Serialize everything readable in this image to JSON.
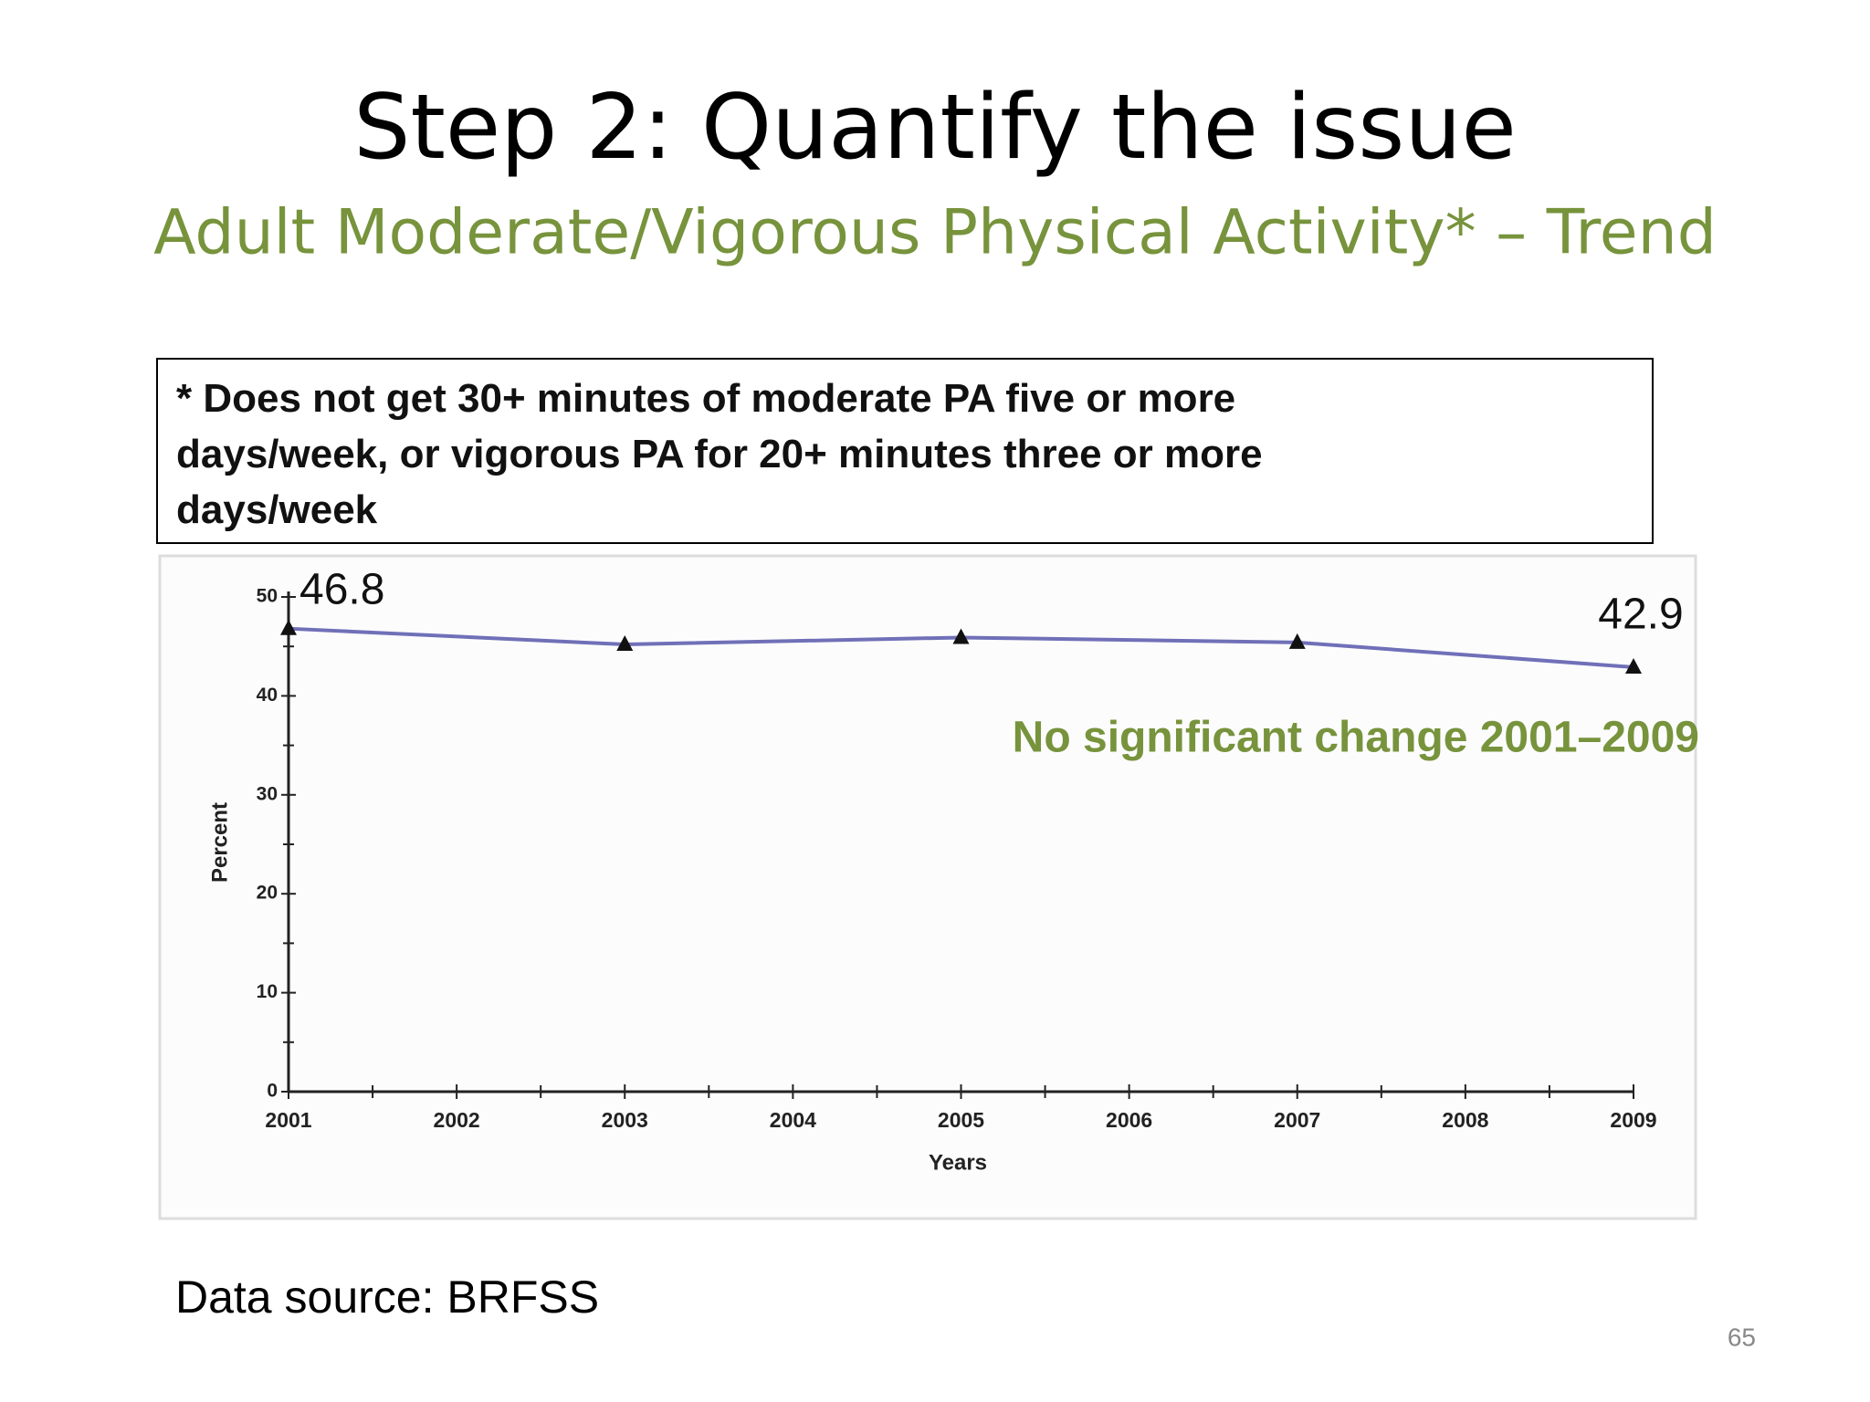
{
  "chart_data": {
    "type": "line",
    "title": "Step 2: Quantify the issue",
    "subtitle": "Adult Moderate/Vigorous Physical Activity* – Trend",
    "note": "* Does not get 30+ minutes of moderate PA five or more days/week, or vigorous PA for 20+ minutes three or more days/week",
    "annotation": "No significant change 2001–2009",
    "x_label": "Years",
    "y_label": "Percent",
    "x": [
      2001,
      2003,
      2005,
      2007,
      2009
    ],
    "series": [
      {
        "name": "Percent",
        "color": "#7070b8",
        "values": [
          46.8,
          45.2,
          45.9,
          45.4,
          42.9
        ],
        "value_labels": [
          "46.8",
          null,
          null,
          null,
          "42.9"
        ]
      }
    ],
    "xlim": [
      2001,
      2009
    ],
    "xticks": [
      2001,
      2002,
      2003,
      2004,
      2005,
      2006,
      2007,
      2008,
      2009
    ],
    "ylim": [
      0,
      50
    ],
    "yticks": [
      0,
      10,
      20,
      30,
      40,
      50
    ]
  },
  "slide": {
    "source": "Data source: BRFSS",
    "page_number": "65"
  }
}
